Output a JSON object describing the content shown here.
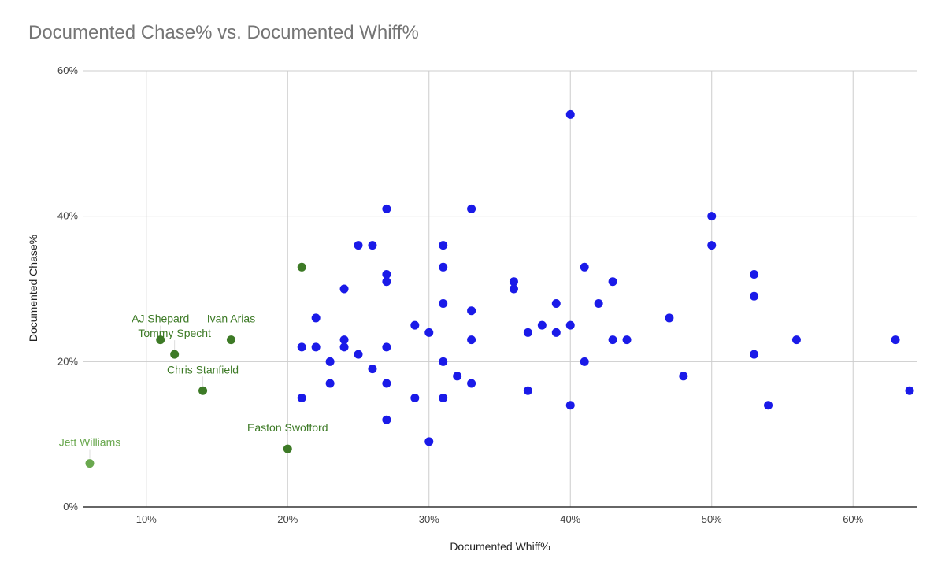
{
  "chart_data": {
    "type": "scatter",
    "title": "Documented Chase% vs. Documented Whiff%",
    "xlabel": "Documented Whiff%",
    "ylabel": "Documented Chase%",
    "xlim": [
      5.5,
      64.5
    ],
    "ylim": [
      0,
      60
    ],
    "x_ticks": [
      10,
      20,
      30,
      40,
      50,
      60
    ],
    "y_ticks": [
      0,
      20,
      40,
      60
    ],
    "x_tick_labels": [
      "10%",
      "20%",
      "30%",
      "40%",
      "50%",
      "60%"
    ],
    "y_tick_labels": [
      "0%",
      "20%",
      "40%",
      "60%"
    ],
    "grid": true,
    "legend": "none",
    "colors": {
      "main": "#1a1ae8",
      "highlight": "#3d7a26",
      "highlight_light": "#6aa84f",
      "grid": "#cccccc",
      "axis": "#333333"
    },
    "series": [
      {
        "color": "#1a1ae8",
        "points": [
          {
            "x": 40,
            "y": 54
          },
          {
            "x": 27,
            "y": 41
          },
          {
            "x": 33,
            "y": 41
          },
          {
            "x": 50,
            "y": 40
          },
          {
            "x": 25,
            "y": 36
          },
          {
            "x": 26,
            "y": 36
          },
          {
            "x": 31,
            "y": 36
          },
          {
            "x": 50,
            "y": 36
          },
          {
            "x": 31,
            "y": 33
          },
          {
            "x": 41,
            "y": 33
          },
          {
            "x": 27,
            "y": 32
          },
          {
            "x": 53,
            "y": 32
          },
          {
            "x": 27,
            "y": 31
          },
          {
            "x": 36,
            "y": 31
          },
          {
            "x": 43,
            "y": 31
          },
          {
            "x": 24,
            "y": 30
          },
          {
            "x": 36,
            "y": 30
          },
          {
            "x": 53,
            "y": 29
          },
          {
            "x": 31,
            "y": 28
          },
          {
            "x": 39,
            "y": 28
          },
          {
            "x": 42,
            "y": 28
          },
          {
            "x": 33,
            "y": 27
          },
          {
            "x": 22,
            "y": 26
          },
          {
            "x": 47,
            "y": 26
          },
          {
            "x": 29,
            "y": 25
          },
          {
            "x": 38,
            "y": 25
          },
          {
            "x": 40,
            "y": 25
          },
          {
            "x": 30,
            "y": 24
          },
          {
            "x": 37,
            "y": 24
          },
          {
            "x": 39,
            "y": 24
          },
          {
            "x": 24,
            "y": 23
          },
          {
            "x": 33,
            "y": 23
          },
          {
            "x": 43,
            "y": 23
          },
          {
            "x": 44,
            "y": 23
          },
          {
            "x": 56,
            "y": 23
          },
          {
            "x": 63,
            "y": 23
          },
          {
            "x": 21,
            "y": 22
          },
          {
            "x": 22,
            "y": 22
          },
          {
            "x": 24,
            "y": 22
          },
          {
            "x": 27,
            "y": 22
          },
          {
            "x": 25,
            "y": 21
          },
          {
            "x": 53,
            "y": 21
          },
          {
            "x": 23,
            "y": 20
          },
          {
            "x": 31,
            "y": 20
          },
          {
            "x": 41,
            "y": 20
          },
          {
            "x": 26,
            "y": 19
          },
          {
            "x": 32,
            "y": 18
          },
          {
            "x": 48,
            "y": 18
          },
          {
            "x": 23,
            "y": 17
          },
          {
            "x": 27,
            "y": 17
          },
          {
            "x": 33,
            "y": 17
          },
          {
            "x": 37,
            "y": 16
          },
          {
            "x": 64,
            "y": 16
          },
          {
            "x": 21,
            "y": 15
          },
          {
            "x": 29,
            "y": 15
          },
          {
            "x": 31,
            "y": 15
          },
          {
            "x": 40,
            "y": 14
          },
          {
            "x": 54,
            "y": 14
          },
          {
            "x": 27,
            "y": 12
          },
          {
            "x": 30,
            "y": 9
          }
        ]
      },
      {
        "color": "#3d7a26",
        "points": [
          {
            "x": 21,
            "y": 33,
            "label": ""
          },
          {
            "x": 11,
            "y": 23,
            "label": "AJ Shepard"
          },
          {
            "x": 12,
            "y": 21,
            "label": "Tommy Specht"
          },
          {
            "x": 16,
            "y": 23,
            "label": "Ivan Arias"
          },
          {
            "x": 14,
            "y": 16,
            "label": "Chris Stanfield"
          },
          {
            "x": 20,
            "y": 8,
            "label": "Easton Swofford"
          },
          {
            "x": 6,
            "y": 6,
            "label": "Jett Williams",
            "color": "#6aa84f"
          }
        ]
      }
    ]
  }
}
